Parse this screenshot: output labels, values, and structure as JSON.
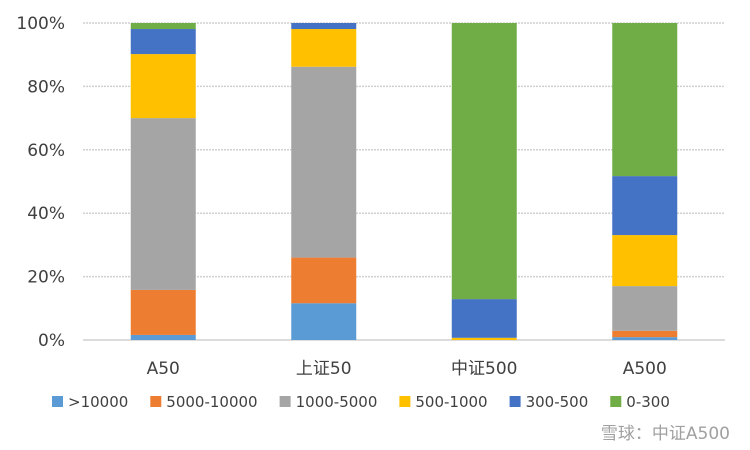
{
  "chart_data": {
    "type": "bar",
    "stacked": true,
    "percent": true,
    "categories": [
      "A50",
      "上证50",
      "中证500",
      "A500"
    ],
    "ylim": [
      0,
      100
    ],
    "yticks": [
      "0%",
      "20%",
      "40%",
      "60%",
      "80%",
      "100%"
    ],
    "grid": true,
    "legend_position": "bottom",
    "series": [
      {
        "name": ">10000",
        "color": "#5B9BD5",
        "values": [
          1.6,
          11.6,
          0,
          0.9
        ]
      },
      {
        "name": "5000-10000",
        "color": "#ED7D31",
        "values": [
          14.2,
          14.4,
          0,
          2.0
        ]
      },
      {
        "name": "1000-5000",
        "color": "#A5A5A5",
        "values": [
          54.2,
          60.2,
          0,
          14.1
        ]
      },
      {
        "name": "500-1000",
        "color": "#FFC000",
        "values": [
          20.2,
          11.9,
          0.7,
          16.1
        ]
      },
      {
        "name": "300-500",
        "color": "#4472C4",
        "values": [
          7.9,
          1.9,
          12.2,
          18.6
        ]
      },
      {
        "name": "0-300",
        "color": "#70AD47",
        "values": [
          1.9,
          0,
          87.1,
          48.3
        ]
      }
    ]
  },
  "watermark": "雪球：中证A500"
}
